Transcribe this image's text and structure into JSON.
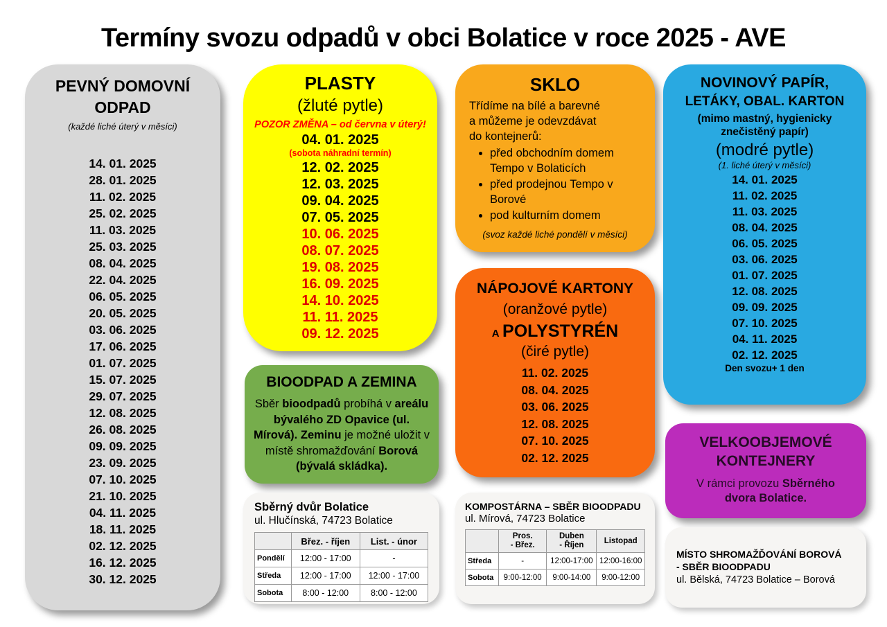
{
  "page": {
    "title": "Termíny svozu odpadů v obci Bolatice v roce 2025 - AVE"
  },
  "colors": {
    "panel_gray": "#D8D8D8",
    "panel_yellow": "#FFFF00",
    "panel_amber": "#F9A81C",
    "panel_orange": "#F96A10",
    "panel_blue": "#29A9E1",
    "panel_green": "#76AD4C",
    "panel_magenta": "#BB2CBB",
    "panel_light": "#F6F5F3",
    "red_accent": "#FF0000",
    "red_date": "#DE0000",
    "magenta_text": "#260B26"
  },
  "pevny": {
    "title_line1": "PEVNÝ DOMOVNÍ",
    "title_line2": "ODPAD",
    "subtitle": "(každé liché úterý v měsíci)",
    "dates": [
      "14. 01. 2025",
      "28. 01. 2025",
      "11. 02. 2025",
      "25. 02. 2025",
      "11. 03. 2025",
      "25. 03. 2025",
      "08. 04. 2025",
      "22. 04. 2025",
      "06. 05. 2025",
      "20. 05. 2025",
      "03. 06. 2025",
      "17. 06. 2025",
      "01. 07. 2025",
      "15. 07. 2025",
      "29. 07. 2025",
      "12. 08. 2025",
      "26. 08. 2025",
      "09. 09. 2025",
      "23. 09. 2025",
      "07. 10. 2025",
      "21. 10. 2025",
      "04. 11. 2025",
      "18. 11. 2025",
      "02. 12. 2025",
      "16. 12. 2025",
      "30. 12. 2025"
    ]
  },
  "plasty": {
    "title": "PLASTY",
    "subtitle": "(žluté pytle)",
    "warning": "POZOR ZMĚNA – od června v úterý!",
    "first_date": "04. 01. 2025",
    "first_date_note": "(sobota náhradní termín)",
    "dates": [
      {
        "t": "12. 02. 2025"
      },
      {
        "t": "12. 03. 2025"
      },
      {
        "t": "09. 04. 2025"
      },
      {
        "t": "07. 05. 2025"
      },
      {
        "t": "10. 06. 2025",
        "c": "d-red"
      },
      {
        "t": "08. 07. 2025",
        "c": "d-red"
      },
      {
        "t": "19. 08. 2025",
        "c": "d-red"
      },
      {
        "t": "16. 09. 2025",
        "c": "d-red"
      },
      {
        "t": "14. 10. 2025",
        "c": "d-red"
      },
      {
        "t": "11. 11. 2025",
        "c": "d-red"
      },
      {
        "t": "09. 12. 2025",
        "c": "d-red"
      }
    ]
  },
  "sklo": {
    "title": "SKLO",
    "lines": [
      "Třídíme na bílé a barevné",
      "a můžeme je odevzdávat",
      "do kontejnerů:"
    ],
    "bullets": [
      "před obchodním domem Tempo v Bolaticích",
      "před prodejnou Tempo v Borové",
      "pod kulturním domem"
    ],
    "note": "(svoz každé liché pondělí v měsíci)"
  },
  "napojove": {
    "title": "NÁPOJOVÉ KARTONY",
    "subtitle": "(oranžové pytle)",
    "a_label": "A",
    "poly_label": "POLYSTYRÉN",
    "subtitle2": "(čiré pytle)",
    "dates": [
      "11. 02. 2025",
      "08. 04. 2025",
      "03. 06. 2025",
      "12. 08. 2025",
      "07. 10. 2025",
      "02. 12. 2025"
    ]
  },
  "papir": {
    "title_line1": "NOVINOVÝ PAPÍR,",
    "title_line2": "LETÁKY, OBAL. KARTON",
    "note_exclusion": "(mimo mastný, hygienicky znečistěný papír)",
    "note_bags": "(modré pytle)",
    "note_schedule": "(1. liché úterý v měsíci)",
    "dates": [
      "14. 01. 2025",
      "11. 02. 2025",
      "11. 03. 2025",
      "08. 04. 2025",
      "06. 05. 2025",
      "03. 06. 2025",
      "01. 07. 2025",
      "12. 08. 2025",
      "09. 09. 2025",
      "07. 10. 2025",
      "04. 11. 2025",
      "02. 12. 2025"
    ],
    "footer": "Den svozu+ 1 den"
  },
  "bioodpad": {
    "title": "BIOODPAD A ZEMINA",
    "body": [
      {
        "t": "Sběr ",
        "b": false
      },
      {
        "t": "bioodpadů",
        "b": true
      },
      {
        "t": " probíhá v ",
        "b": false
      },
      {
        "t": "areálu bývalého ZD Opavice (ul. Mírová).",
        "b": true
      },
      {
        "t": " ",
        "b": false
      },
      {
        "t": "Zeminu",
        "b": true
      },
      {
        "t": " je možné uložit v místě shromažďování ",
        "b": false
      },
      {
        "t": "Borová (bývalá skládka).",
        "b": true
      }
    ]
  },
  "velko": {
    "title_line1": "VELKOOBJEMOVÉ",
    "title_line2": "KONTEJNERY",
    "body": [
      {
        "t": "V rámci provozu ",
        "b": false
      },
      {
        "t": "Sběrného dvora Bolatice.",
        "b": true
      }
    ]
  },
  "sberny": {
    "title": "Sběrný dvůr Bolatice",
    "address": "ul. Hlučínská, 74723 Bolatice",
    "table": {
      "headers": [
        "",
        "Břez. - říjen",
        "List. - únor"
      ],
      "rows": [
        [
          "Pondělí",
          "12:00 - 17:00",
          "-"
        ],
        [
          "Středa",
          "12:00 - 17:00",
          "12:00 - 17:00"
        ],
        [
          "Sobota",
          "8:00 - 12:00",
          "8:00 - 12:00"
        ]
      ]
    }
  },
  "kompostarna": {
    "title": "KOMPOSTÁRNA – SBĚR BIOODPADU",
    "address": "ul. Mírová, 74723 Bolatice",
    "table": {
      "headers": [
        "",
        "Pros.\n- Břez.",
        "Duben\n- Říjen",
        "Listopad"
      ],
      "rows": [
        [
          "Středa",
          "-",
          "12:00-17:00",
          "12:00-16:00"
        ],
        [
          "Sobota",
          "9:00-12:00",
          "9:00-14:00",
          "9:00-12:00"
        ]
      ]
    }
  },
  "misto": {
    "line1": "MÍSTO SHROMAŽĎOVÁNÍ BOROVÁ",
    "line2": "- SBĚR BIOODPADU",
    "address": "ul. Bělská, 74723 Bolatice – Borová"
  }
}
